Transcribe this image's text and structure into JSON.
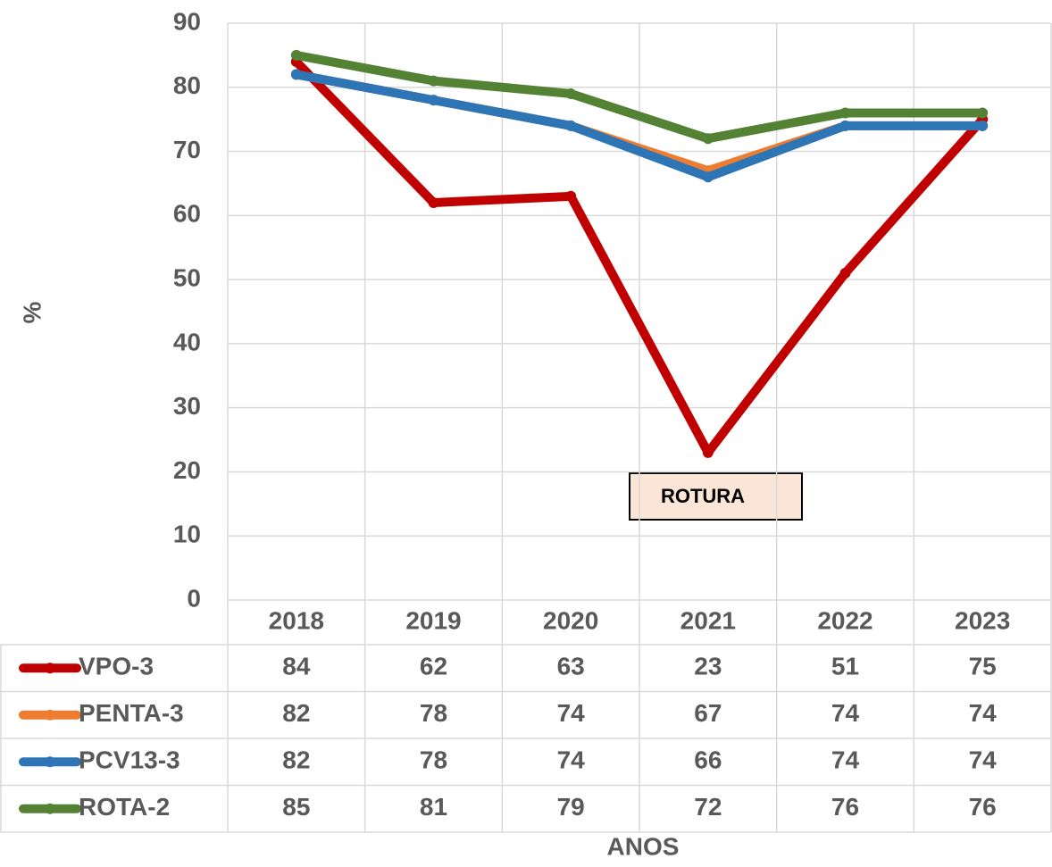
{
  "chart_data": {
    "type": "line",
    "categories": [
      "2018",
      "2019",
      "2020",
      "2021",
      "2022",
      "2023"
    ],
    "series": [
      {
        "name": "VPO-3",
        "color": "#c00000",
        "values": [
          84,
          62,
          63,
          23,
          51,
          75
        ]
      },
      {
        "name": "PENTA-3",
        "color": "#ed7d31",
        "values": [
          82,
          78,
          74,
          67,
          74,
          74
        ]
      },
      {
        "name": "PCV13-3",
        "color": "#2e75b6",
        "values": [
          82,
          78,
          74,
          66,
          74,
          74
        ]
      },
      {
        "name": "ROTA-2",
        "color": "#548235",
        "values": [
          85,
          81,
          79,
          72,
          76,
          76
        ]
      }
    ],
    "ylim": [
      0,
      90
    ],
    "yticks": [
      0,
      10,
      20,
      30,
      40,
      50,
      60,
      70,
      80,
      90
    ],
    "ylabel": "%",
    "xlabel": "ANOS",
    "grid": true,
    "annotations": [
      {
        "text": "ROTURA"
      }
    ]
  }
}
